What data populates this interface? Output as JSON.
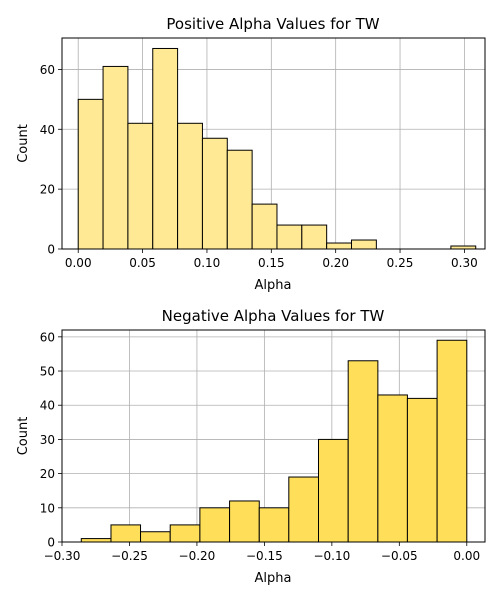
{
  "chart_data": [
    {
      "type": "bar",
      "subtype": "histogram",
      "title": "Positive Alpha Values for TW",
      "xlabel": "Alpha",
      "ylabel": "Count",
      "xlim": [
        -0.0126,
        0.316
      ],
      "ylim": [
        0,
        70.5
      ],
      "xticks": [
        0.0,
        0.05,
        0.1,
        0.15,
        0.2,
        0.25,
        0.3
      ],
      "xtick_labels": [
        "0.00",
        "0.05",
        "0.10",
        "0.15",
        "0.20",
        "0.25",
        "0.30"
      ],
      "yticks": [
        0,
        20,
        40,
        60
      ],
      "ytick_labels": [
        "0",
        "20",
        "40",
        "60"
      ],
      "bin_edges": [
        0.0,
        0.0193,
        0.0386,
        0.0579,
        0.0772,
        0.0965,
        0.1158,
        0.1351,
        0.1544,
        0.1737,
        0.193,
        0.2123,
        0.2316,
        0.2509,
        0.2702,
        0.2895,
        0.3088
      ],
      "values": [
        50,
        61,
        42,
        67,
        42,
        37,
        33,
        15,
        8,
        8,
        2,
        3,
        0,
        0,
        0,
        1
      ],
      "bar_color": "#ffe994",
      "edge_color": "#000000",
      "grid": true
    },
    {
      "type": "bar",
      "subtype": "histogram",
      "title": "Negative Alpha Values for TW",
      "xlabel": "Alpha",
      "ylabel": "Count",
      "xlim": [
        -0.3,
        0.0135
      ],
      "ylim": [
        0,
        62
      ],
      "xticks": [
        -0.3,
        -0.25,
        -0.2,
        -0.15,
        -0.1,
        -0.05,
        0.0
      ],
      "xtick_labels": [
        "−0.30",
        "−0.25",
        "−0.20",
        "−0.15",
        "−0.10",
        "−0.05",
        "0.00"
      ],
      "yticks": [
        0,
        10,
        20,
        30,
        40,
        50,
        60
      ],
      "ytick_labels": [
        "0",
        "10",
        "20",
        "30",
        "40",
        "50",
        "60"
      ],
      "bin_edges": [
        -0.2857,
        -0.2637,
        -0.2418,
        -0.2198,
        -0.1978,
        -0.1758,
        -0.1538,
        -0.1319,
        -0.1099,
        -0.0879,
        -0.0659,
        -0.044,
        -0.022,
        0.0
      ],
      "values": [
        1,
        5,
        3,
        5,
        10,
        12,
        10,
        19,
        30,
        53,
        43,
        42,
        59
      ],
      "bar_color": "#ffdf5a",
      "edge_color": "#000000",
      "grid": true
    }
  ]
}
